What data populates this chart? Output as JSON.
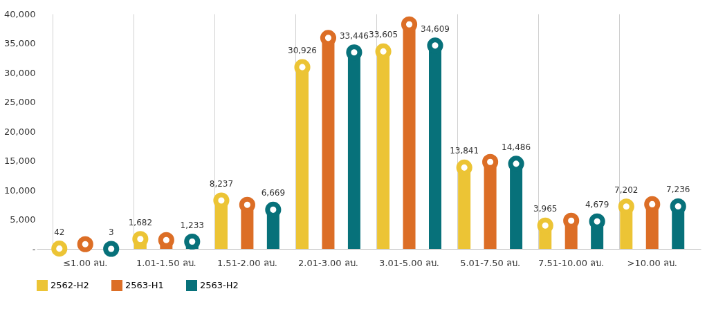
{
  "chart_data": {
    "type": "lollipop",
    "marker": "circle",
    "legend": "bottom",
    "grid": "x",
    "categories": [
      "≤1.00 ลบ.",
      "1.01-1.50 ลบ.",
      "1.51-2.00 ลบ.",
      "2.01-3.00 ลบ.",
      "3.01-5.00 ลบ.",
      "5.01-7.50 ลบ.",
      "7.51-10.00 ลบ.",
      ">10.00 ลบ."
    ],
    "ylim": [
      0,
      40000
    ],
    "yticks": [
      {
        "value": 0,
        "label": "-"
      },
      {
        "value": 5000,
        "label": "5,000"
      },
      {
        "value": 10000,
        "label": "10,000"
      },
      {
        "value": 15000,
        "label": "15,000"
      },
      {
        "value": 20000,
        "label": "20,000"
      },
      {
        "value": 25000,
        "label": "25,000"
      },
      {
        "value": 30000,
        "label": "30,000"
      },
      {
        "value": 35000,
        "label": "35,000"
      },
      {
        "value": 40000,
        "label": "40,000"
      }
    ],
    "series": [
      {
        "name": "2562-H2",
        "color": "#ecc435",
        "values": [
          42,
          1682,
          8237,
          30926,
          33605,
          13841,
          3965,
          7202
        ],
        "value_labels": [
          "42",
          "1,682",
          "8,237",
          "30,926",
          "33,605",
          "13,841",
          "3,965",
          "7,202"
        ]
      },
      {
        "name": "2563-H1",
        "color": "#dc6e26",
        "values": [
          800,
          1500,
          7500,
          35900,
          38200,
          14800,
          4800,
          7600
        ]
      },
      {
        "name": "2563-H2",
        "color": "#07717a",
        "values": [
          3,
          1233,
          6669,
          33446,
          34609,
          14486,
          4679,
          7236
        ],
        "value_labels": [
          "3",
          "1,233",
          "6,669",
          "33,446",
          "34,609",
          "14,486",
          "4,679",
          "7,236"
        ]
      }
    ]
  }
}
